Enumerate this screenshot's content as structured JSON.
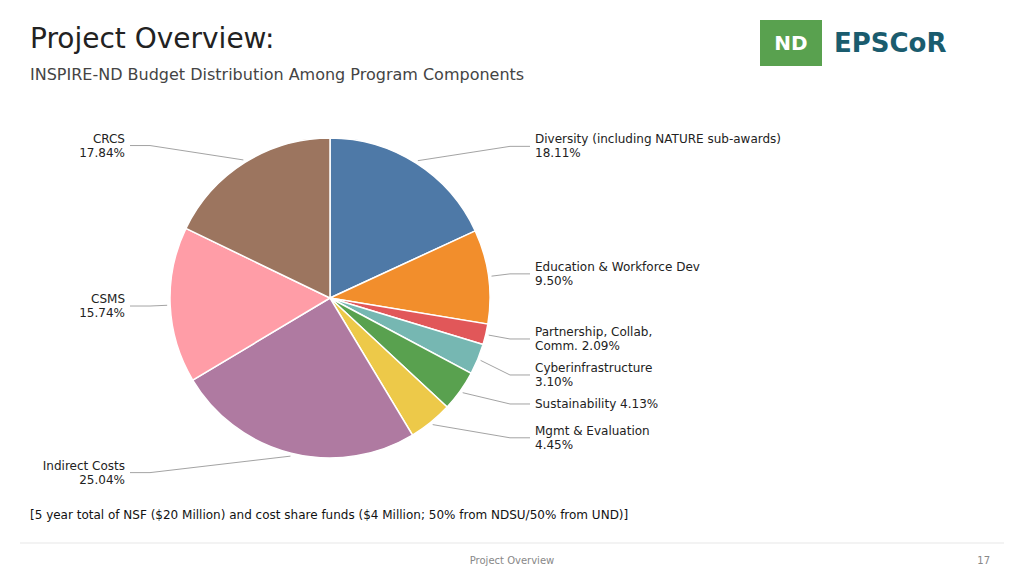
{
  "chart_data": {
    "type": "pie",
    "title": "Project Overview:",
    "subtitle": "INSPIRE-ND Budget Distribution Among Program Components",
    "categories": [
      "Diversity (including NATURE sub-awards)\n18.11%",
      "Education & Workforce Dev\n9.50%",
      "Partnership, Collab,\nComm. 2.09%",
      "Cyberinfrastructure\n3.10%",
      "Sustainability 4.13%",
      "Mgmt & Evaluation\n4.45%",
      "Indirect Costs\n25.04%",
      "CSMS\n15.74%",
      "CRCS\n17.84%"
    ],
    "values": [
      18.11,
      9.5,
      2.09,
      3.1,
      4.13,
      4.45,
      25.04,
      15.74,
      17.84
    ],
    "annotations": [
      "ND",
      "EPSCoR",
      "[5 year total of NSF ($20 Million) and cost share funds ($4 Million; 50% from NDSU/50% from UND)]",
      "Project Overview",
      "17"
    ]
  }
}
